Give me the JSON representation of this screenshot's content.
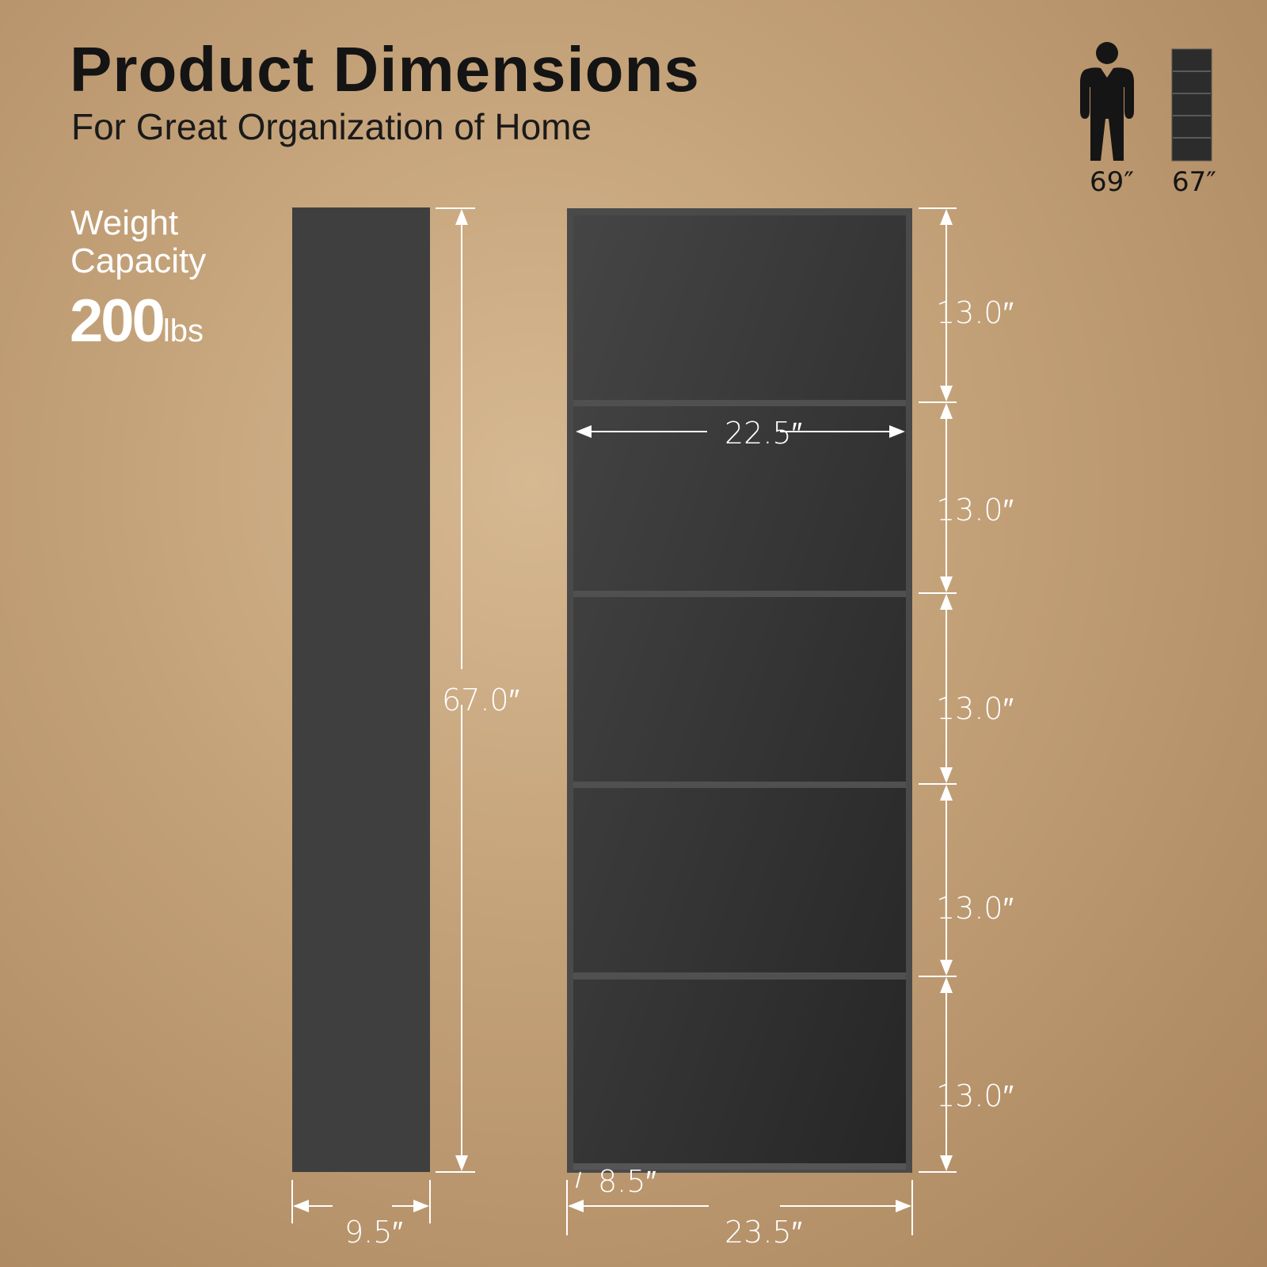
{
  "header": {
    "title": "Product Dimensions",
    "subtitle": "For Great Organization of Home"
  },
  "weight": {
    "line1": "Weight",
    "line2": "Capacity",
    "value": "200",
    "unit": "lbs"
  },
  "comparison": {
    "person_height": "69″",
    "bookcase_height": "67″",
    "icons": [
      "person-icon",
      "bookcase-icon"
    ]
  },
  "dimensions": {
    "total_height": "67.0″",
    "depth": "9.5″",
    "outer_width": "23.5″",
    "inner_width": "22.5″",
    "shelf_depth": "8.5″",
    "shelf_heights": [
      "13.0″",
      "13.0″",
      "13.0″",
      "13.0″",
      "13.0″"
    ]
  },
  "colors": {
    "product": "#3c3c3c",
    "background": "#c4a279",
    "text_dark": "#141414",
    "text_light": "#ffffff"
  }
}
